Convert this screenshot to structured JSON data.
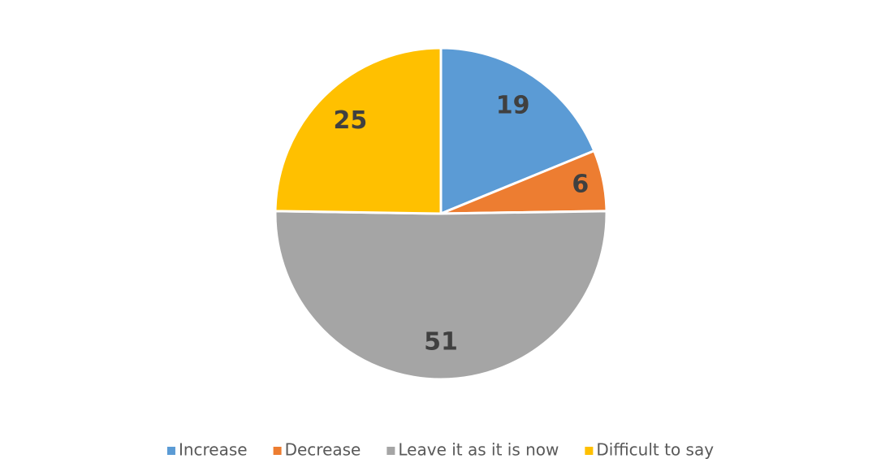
{
  "chart_data": {
    "type": "pie",
    "categories": [
      "Increase",
      "Decrease",
      "Leave it as it is now",
      "Difficult to say"
    ],
    "values": [
      19,
      6,
      51,
      25
    ],
    "colors": [
      "#5b9bd5",
      "#ed7d31",
      "#a5a5a5",
      "#ffc000"
    ],
    "legend": "bottom"
  }
}
